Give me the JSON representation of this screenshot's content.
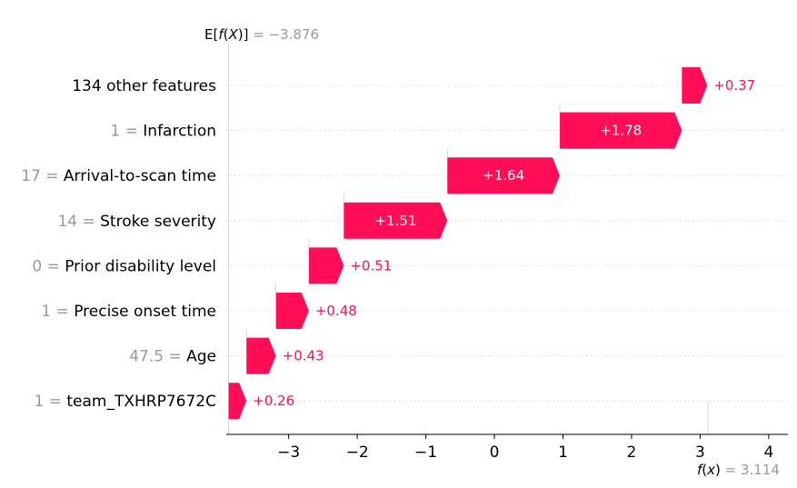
{
  "chart_data": {
    "type": "waterfall",
    "base": {
      "label_math": "E[f(X)]",
      "value_text": "= −3.876",
      "value": -3.876
    },
    "final": {
      "label_math": "f(x)",
      "value_text": "= 3.114",
      "value": 3.114
    },
    "features": [
      {
        "value_text": "",
        "name": "134 other features",
        "contribution": 0.37,
        "contribution_label": "+0.37"
      },
      {
        "value_text": "1 =",
        "name": "Infarction",
        "contribution": 1.78,
        "contribution_label": "+1.78"
      },
      {
        "value_text": "17 =",
        "name": "Arrival-to-scan time",
        "contribution": 1.64,
        "contribution_label": "+1.64"
      },
      {
        "value_text": "14 =",
        "name": "Stroke severity",
        "contribution": 1.51,
        "contribution_label": "+1.51"
      },
      {
        "value_text": "0 =",
        "name": "Prior disability level",
        "contribution": 0.51,
        "contribution_label": "+0.51"
      },
      {
        "value_text": "1 =",
        "name": "Precise onset time",
        "contribution": 0.48,
        "contribution_label": "+0.48"
      },
      {
        "value_text": "47.5 =",
        "name": "Age",
        "contribution": 0.43,
        "contribution_label": "+0.43"
      },
      {
        "value_text": "1 =",
        "name": "team_TXHRP7672C",
        "contribution": 0.26,
        "contribution_label": "+0.26"
      }
    ],
    "x_ticks": [
      -3,
      -2,
      -1,
      0,
      1,
      2,
      3,
      4
    ],
    "x_tick_labels": [
      "−3",
      "−2",
      "−1",
      "0",
      "1",
      "2",
      "3",
      "4"
    ],
    "xlim": [
      -3.91,
      4.28
    ],
    "colors": {
      "positive": "#ff0d57",
      "text_dark": "#000000",
      "text_gray": "#999999",
      "grid": "#cccccc",
      "bar_label_inside": "#ffffff"
    },
    "grid": true
  }
}
